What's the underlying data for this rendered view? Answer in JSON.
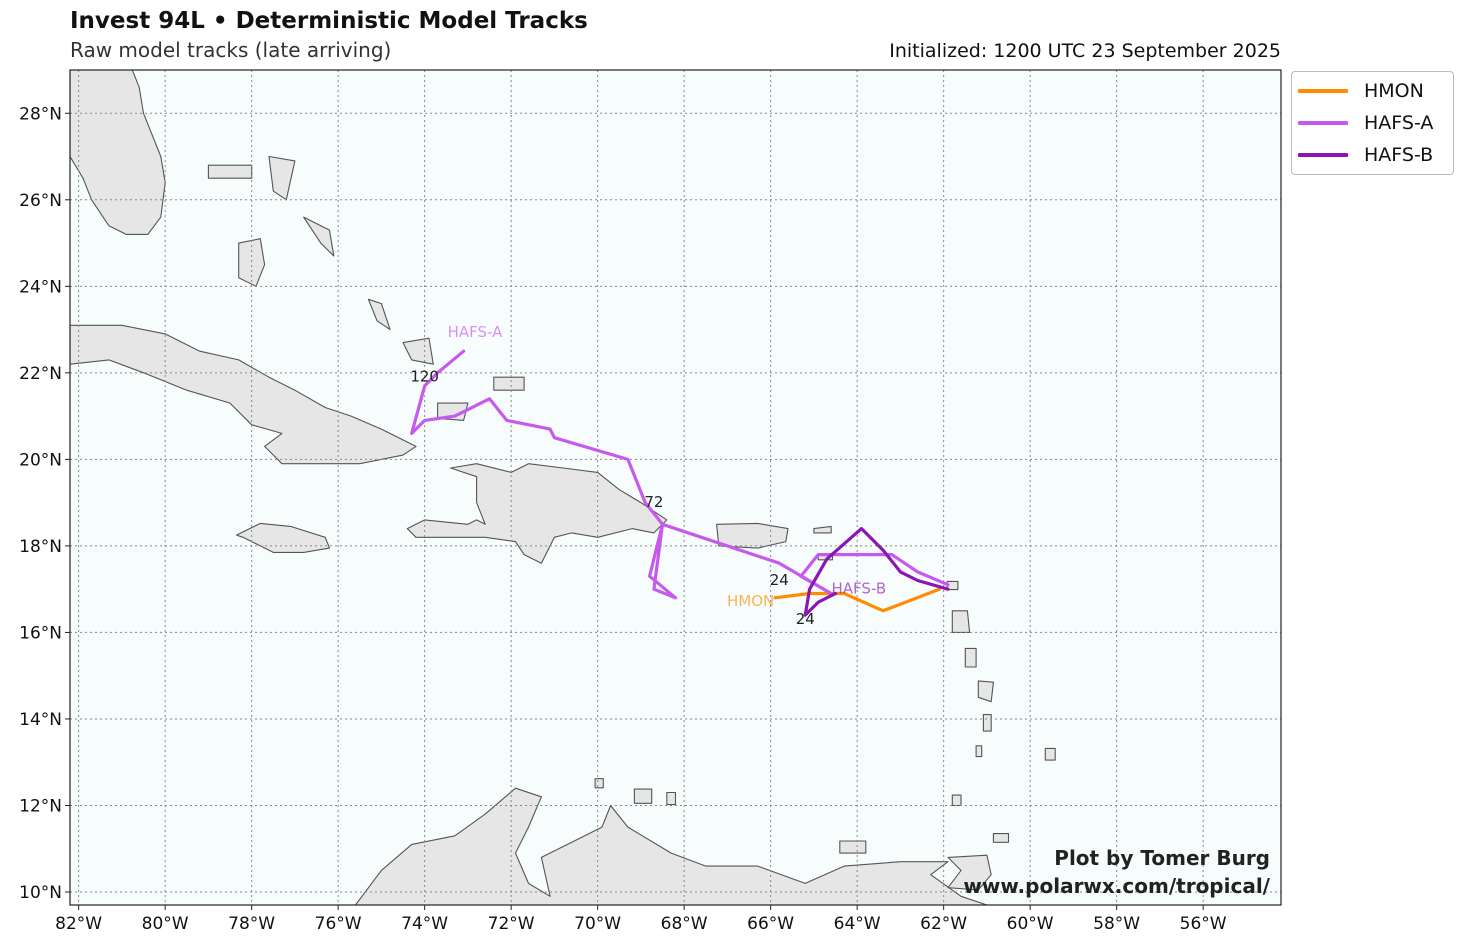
{
  "header": {
    "title": "Invest 94L • Deterministic Model Tracks",
    "subtitle": "Raw model tracks (late arriving)",
    "initialized": "Initialized: 1200 UTC 23 September 2025"
  },
  "credit": {
    "line1": "Plot by Tomer Burg",
    "line2": "www.polarwx.com/tropical/"
  },
  "map": {
    "ocean_color": "#f7fcfd",
    "land_color": "#e6e6e6",
    "coast_color": "#555555",
    "grid": true,
    "lon_range": [
      -82.2,
      -54.2
    ],
    "lat_range": [
      9.7,
      29.0
    ],
    "lon_ticks": [
      -82,
      -80,
      -78,
      -76,
      -74,
      -72,
      -70,
      -68,
      -66,
      -64,
      -62,
      -60,
      -58,
      -56
    ],
    "lat_ticks": [
      10,
      12,
      14,
      16,
      18,
      20,
      22,
      24,
      26,
      28
    ],
    "lon_tick_labels": [
      "82°W",
      "80°W",
      "78°W",
      "76°W",
      "74°W",
      "72°W",
      "70°W",
      "68°W",
      "66°W",
      "64°W",
      "62°W",
      "60°W",
      "58°W",
      "56°W"
    ],
    "lat_tick_labels": [
      "10°N",
      "12°N",
      "14°N",
      "16°N",
      "18°N",
      "20°N",
      "22°N",
      "24°N",
      "26°N",
      "28°N"
    ]
  },
  "legend": {
    "placement": "outside-top-right",
    "items": [
      {
        "label": "HMON",
        "color": "#ff8c00"
      },
      {
        "label": "HAFS-A",
        "color": "#c65aee"
      },
      {
        "label": "HAFS-B",
        "color": "#8b16b5"
      }
    ]
  },
  "tracks": [
    {
      "name": "HMON",
      "color": "#ff8c00",
      "label": "HMON",
      "points": [
        [
          -62.1,
          17.0
        ],
        [
          -63.4,
          16.5
        ],
        [
          -64.3,
          16.9
        ],
        [
          -65.1,
          16.9
        ],
        [
          -65.9,
          16.8
        ]
      ],
      "hour_labels": []
    },
    {
      "name": "HAFS-A",
      "color": "#c65aee",
      "label": "HAFS-A",
      "points": [
        [
          -61.9,
          17.1
        ],
        [
          -62.6,
          17.4
        ],
        [
          -63.2,
          17.8
        ],
        [
          -64.9,
          17.8
        ],
        [
          -65.3,
          17.3
        ],
        [
          -64.6,
          16.9
        ],
        [
          -65.8,
          17.6
        ],
        [
          -68.5,
          18.5
        ],
        [
          -68.8,
          17.3
        ],
        [
          -68.2,
          16.8
        ],
        [
          -68.7,
          17.0
        ],
        [
          -68.5,
          18.5
        ],
        [
          -68.9,
          19.0
        ],
        [
          -69.3,
          20.0
        ],
        [
          -71.0,
          20.5
        ],
        [
          -71.1,
          20.7
        ],
        [
          -72.1,
          20.9
        ],
        [
          -72.5,
          21.4
        ],
        [
          -73.3,
          21.0
        ],
        [
          -74.0,
          20.9
        ],
        [
          -74.3,
          20.6
        ],
        [
          -74.0,
          21.7
        ],
        [
          -73.7,
          22.0
        ],
        [
          -73.1,
          22.5
        ]
      ],
      "hour_labels": [
        {
          "text": "72",
          "pos": [
            -68.7,
            18.9
          ]
        },
        {
          "text": "120",
          "pos": [
            -74.0,
            21.8
          ]
        }
      ]
    },
    {
      "name": "HAFS-B",
      "color": "#8b16b5",
      "label": "HAFS-B",
      "points": [
        [
          -61.9,
          17.0
        ],
        [
          -62.6,
          17.2
        ],
        [
          -63.0,
          17.4
        ],
        [
          -63.4,
          17.9
        ],
        [
          -63.9,
          18.4
        ],
        [
          -64.7,
          17.7
        ],
        [
          -65.1,
          17.0
        ],
        [
          -65.2,
          16.4
        ],
        [
          -64.9,
          16.7
        ],
        [
          -64.5,
          16.9
        ]
      ],
      "hour_labels": [
        {
          "text": "24",
          "pos": [
            -65.8,
            17.1
          ]
        },
        {
          "text": "24",
          "pos": [
            -65.2,
            16.2
          ]
        }
      ]
    }
  ]
}
